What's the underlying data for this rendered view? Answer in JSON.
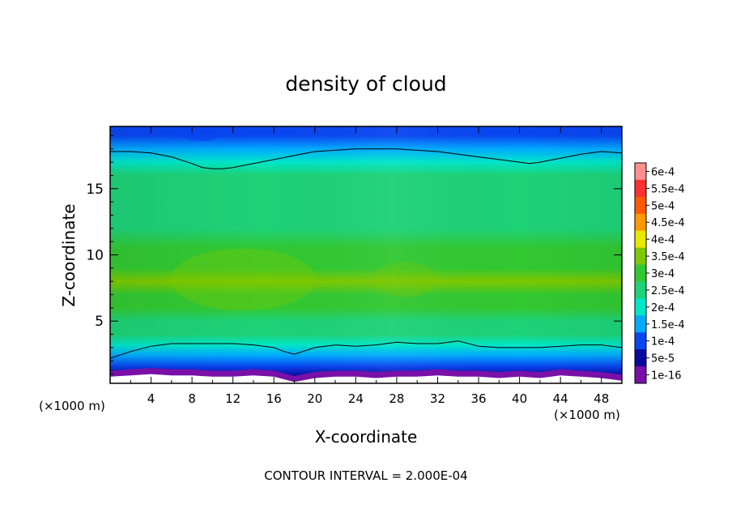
{
  "chart_data": {
    "type": "heatmap",
    "title": "density of cloud",
    "xlabel": "X-coordinate",
    "ylabel": "Z-coordinate",
    "x_unit_label": "(×1000 m)",
    "y_unit_label": "(×1000 m)",
    "xlim": [
      0,
      50
    ],
    "ylim": [
      0.3,
      19.7
    ],
    "x_ticks": [
      4,
      8,
      12,
      16,
      20,
      24,
      28,
      32,
      36,
      40,
      44,
      48
    ],
    "y_ticks": [
      5,
      10,
      15
    ],
    "footer": "CONTOUR INTERVAL = 2.000E-04",
    "grid": false,
    "legend_position": "right",
    "colorbar": {
      "labels": [
        "6e-4",
        "5.5e-4",
        "5e-4",
        "4.5e-4",
        "4e-4",
        "3.5e-4",
        "3e-4",
        "2.5e-4",
        "2e-4",
        "1.5e-4",
        "1e-4",
        "5e-5",
        "1e-16"
      ],
      "values": [
        0.0006,
        0.00055,
        0.0005,
        0.00045,
        0.0004,
        0.00035,
        0.0003,
        0.00025,
        0.0002,
        0.00015,
        0.0001,
        5e-05,
        1e-16
      ],
      "colors": [
        "#ff9090",
        "#ff3030",
        "#ff5a00",
        "#ff9900",
        "#e8e800",
        "#7ec800",
        "#32c832",
        "#1ed278",
        "#00e6c8",
        "#00aaff",
        "#0a46f0",
        "#0a0aa0",
        "#7a10a8"
      ]
    },
    "contour_lines_value": 0.0002,
    "profile_z": [
      0.3,
      0.9,
      1.6,
      2.4,
      3.2,
      4.0,
      5.0,
      6.0,
      7.0,
      8.0,
      9.0,
      10.5,
      12.0,
      13.5,
      15.0,
      16.0,
      17.0,
      18.0,
      19.0,
      19.7
    ],
    "profile_density": [
      1e-05,
      5e-05,
      0.0001,
      0.00016,
      0.00022,
      0.00026,
      0.00029,
      0.00031,
      0.00034,
      0.00035,
      0.00034,
      0.00031,
      0.00029,
      0.00028,
      0.00027,
      0.00025,
      0.00022,
      0.00017,
      0.00012,
      0.0001
    ],
    "contour_lower_x": [
      0,
      2,
      4,
      6,
      8,
      10,
      12,
      14,
      16,
      17,
      18,
      20,
      22,
      24,
      26,
      28,
      30,
      32,
      34,
      36,
      38,
      40,
      42,
      44,
      46,
      48,
      50
    ],
    "contour_lower_z": [
      2.2,
      2.7,
      3.1,
      3.3,
      3.3,
      3.3,
      3.3,
      3.2,
      3.0,
      2.7,
      2.5,
      3.0,
      3.2,
      3.1,
      3.2,
      3.4,
      3.3,
      3.3,
      3.5,
      3.1,
      3.0,
      3.0,
      3.0,
      3.1,
      3.2,
      3.2,
      3.0
    ],
    "contour_upper_x": [
      0,
      2,
      4,
      6,
      8,
      9,
      10,
      11,
      12,
      14,
      16,
      18,
      20,
      22,
      24,
      26,
      28,
      30,
      32,
      34,
      36,
      38,
      40,
      41,
      42,
      44,
      46,
      48,
      50
    ],
    "contour_upper_z": [
      17.8,
      17.8,
      17.7,
      17.4,
      16.9,
      16.6,
      16.5,
      16.5,
      16.6,
      16.9,
      17.2,
      17.5,
      17.8,
      17.9,
      18.0,
      18.0,
      18.0,
      17.9,
      17.8,
      17.6,
      17.4,
      17.2,
      17.0,
      16.9,
      17.0,
      17.3,
      17.6,
      17.8,
      17.7
    ],
    "cloud_base_x": [
      0,
      2,
      4,
      6,
      8,
      10,
      12,
      14,
      16,
      18,
      20,
      22,
      24,
      26,
      28,
      30,
      32,
      34,
      36,
      38,
      40,
      42,
      44,
      46,
      48,
      50
    ],
    "cloud_base_z": [
      0.8,
      0.9,
      1.0,
      0.9,
      0.9,
      0.8,
      0.8,
      0.9,
      0.8,
      0.4,
      0.7,
      0.8,
      0.8,
      0.7,
      0.8,
      0.8,
      0.9,
      0.8,
      0.8,
      0.7,
      0.8,
      0.7,
      0.9,
      0.8,
      0.7,
      0.5
    ]
  }
}
